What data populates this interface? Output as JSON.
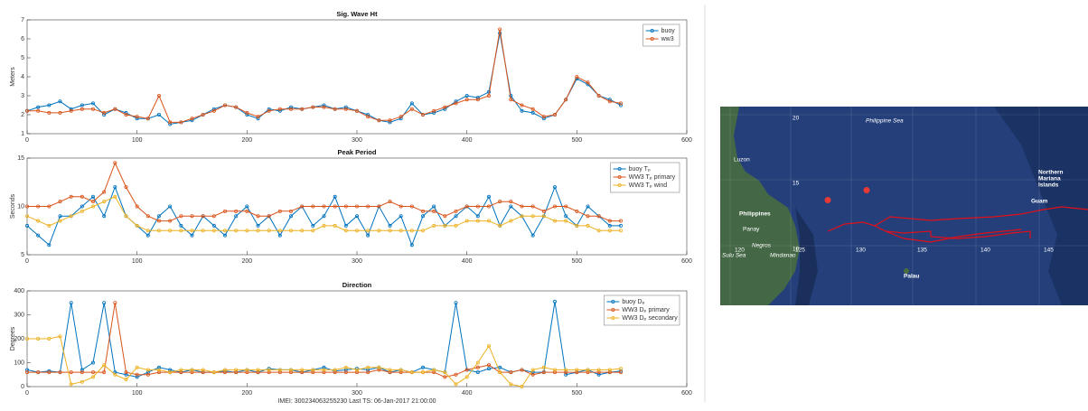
{
  "chart_data": [
    {
      "type": "line",
      "title": "Sig. Wave Ht",
      "y_label": "Meters",
      "x": [
        0,
        10,
        20,
        30,
        40,
        50,
        60,
        70,
        80,
        90,
        100,
        110,
        120,
        130,
        140,
        150,
        160,
        170,
        180,
        190,
        200,
        210,
        220,
        230,
        240,
        250,
        260,
        270,
        280,
        290,
        300,
        310,
        320,
        330,
        340,
        350,
        360,
        370,
        380,
        390,
        400,
        410,
        420,
        430,
        440,
        450,
        460,
        470,
        480,
        490,
        500,
        510,
        520,
        530,
        540
      ],
      "series": [
        {
          "name": "buoy",
          "color": "#0072bd",
          "values": [
            2.2,
            2.4,
            2.5,
            2.7,
            2.3,
            2.5,
            2.6,
            2.0,
            2.3,
            2.1,
            1.8,
            1.8,
            2.0,
            1.5,
            1.6,
            1.7,
            2.0,
            2.3,
            2.5,
            2.4,
            2.0,
            1.8,
            2.3,
            2.2,
            2.4,
            2.3,
            2.4,
            2.5,
            2.3,
            2.4,
            2.2,
            2.0,
            1.7,
            1.6,
            1.8,
            2.6,
            2.0,
            2.1,
            2.3,
            2.7,
            3.0,
            2.9,
            3.2,
            6.3,
            3.0,
            2.2,
            2.1,
            1.8,
            2.0,
            2.8,
            3.9,
            3.6,
            3.0,
            2.8,
            2.5
          ]
        },
        {
          "name": "ww3",
          "color": "#d95319",
          "values": [
            2.2,
            2.2,
            2.1,
            2.1,
            2.2,
            2.3,
            2.3,
            2.1,
            2.3,
            2.0,
            1.9,
            1.8,
            3.0,
            1.6,
            1.6,
            1.8,
            2.0,
            2.2,
            2.5,
            2.4,
            2.1,
            1.9,
            2.2,
            2.3,
            2.3,
            2.3,
            2.4,
            2.4,
            2.3,
            2.3,
            2.2,
            1.9,
            1.7,
            1.7,
            1.9,
            2.3,
            2.0,
            2.2,
            2.4,
            2.6,
            2.8,
            2.8,
            3.0,
            6.5,
            2.8,
            2.5,
            2.3,
            1.9,
            2.0,
            2.8,
            4.0,
            3.7,
            3.0,
            2.7,
            2.6
          ]
        }
      ],
      "xlim": [
        0,
        600
      ],
      "xticks": [
        0,
        100,
        200,
        300,
        400,
        500,
        600
      ],
      "ylim": [
        1,
        7
      ],
      "yticks": [
        1,
        2,
        3,
        4,
        5,
        6,
        7
      ],
      "grid": false,
      "legend": "upper right"
    },
    {
      "type": "line",
      "title": "Peak Period",
      "y_label": "Seconds",
      "x": [
        0,
        10,
        20,
        30,
        40,
        50,
        60,
        70,
        80,
        90,
        100,
        110,
        120,
        130,
        140,
        150,
        160,
        170,
        180,
        190,
        200,
        210,
        220,
        230,
        240,
        250,
        260,
        270,
        280,
        290,
        300,
        310,
        320,
        330,
        340,
        350,
        360,
        370,
        380,
        390,
        400,
        410,
        420,
        430,
        440,
        450,
        460,
        470,
        480,
        490,
        500,
        510,
        520,
        530,
        540
      ],
      "series": [
        {
          "name": "buoy Tₚ",
          "color": "#0072bd",
          "values": [
            8,
            7,
            6,
            9,
            9,
            10,
            11,
            9,
            12,
            9,
            8,
            7,
            9,
            10,
            8,
            7,
            9,
            8,
            7,
            9,
            10,
            8,
            9,
            7,
            9,
            10,
            8,
            9,
            11,
            8,
            9,
            7,
            10,
            8,
            9,
            6,
            9,
            10,
            8,
            9,
            10,
            9,
            11,
            8,
            10,
            9,
            7,
            9,
            12,
            9,
            8,
            10,
            9,
            8,
            8
          ]
        },
        {
          "name": "WW3 Tₚ primary",
          "color": "#d95319",
          "values": [
            10,
            10,
            10,
            10.5,
            11,
            11,
            10.5,
            11.5,
            14.5,
            12,
            10,
            9,
            8.5,
            8.5,
            9,
            9,
            9,
            9,
            9.5,
            9.5,
            9.5,
            9,
            9,
            9.5,
            9.5,
            10,
            10,
            10,
            10,
            10,
            10,
            10,
            10,
            10.5,
            10,
            10,
            9.5,
            9.5,
            9,
            9.5,
            10,
            10,
            10,
            10.5,
            10.5,
            10,
            10,
            9.5,
            10,
            10,
            9.5,
            9,
            9,
            8.5,
            8.5
          ]
        },
        {
          "name": "WW3 Tₚ wind",
          "color": "#edb120",
          "values": [
            9,
            8.5,
            8,
            8.5,
            9,
            9.5,
            10,
            10.5,
            11,
            9,
            8,
            7.5,
            7.5,
            7.5,
            7.5,
            7.5,
            7.5,
            7.5,
            7.5,
            7.5,
            7.5,
            7.5,
            7.5,
            7.5,
            7.5,
            7.5,
            7.5,
            8,
            8,
            7.5,
            7.5,
            7.5,
            7.5,
            7.5,
            7.5,
            7.5,
            7.5,
            8,
            8,
            8,
            8.5,
            8.5,
            8.5,
            8,
            8.5,
            9,
            9,
            9,
            8.5,
            8.5,
            8,
            8,
            7.5,
            7.5,
            7.5
          ]
        }
      ],
      "xlim": [
        0,
        600
      ],
      "xticks": [
        0,
        100,
        200,
        300,
        400,
        500,
        600
      ],
      "ylim": [
        5,
        15
      ],
      "yticks": [
        5,
        10,
        15
      ],
      "grid": false,
      "legend": "upper right"
    },
    {
      "type": "line",
      "title": "Direction",
      "y_label": "Degrees",
      "x": [
        0,
        10,
        20,
        30,
        40,
        50,
        60,
        70,
        80,
        90,
        100,
        110,
        120,
        130,
        140,
        150,
        160,
        170,
        180,
        190,
        200,
        210,
        220,
        230,
        240,
        250,
        260,
        270,
        280,
        290,
        300,
        310,
        320,
        330,
        340,
        350,
        360,
        370,
        380,
        390,
        400,
        410,
        420,
        430,
        440,
        450,
        460,
        470,
        480,
        490,
        500,
        510,
        520,
        530,
        540
      ],
      "series": [
        {
          "name": "buoy Dₚ",
          "color": "#0072bd",
          "values": [
            70,
            60,
            65,
            60,
            350,
            70,
            100,
            350,
            60,
            50,
            40,
            60,
            80,
            70,
            60,
            70,
            60,
            60,
            65,
            60,
            70,
            60,
            75,
            70,
            70,
            60,
            70,
            80,
            65,
            70,
            75,
            70,
            80,
            60,
            70,
            60,
            80,
            70,
            60,
            350,
            70,
            60,
            75,
            80,
            60,
            70,
            60,
            60,
            355,
            50,
            60,
            70,
            50,
            60,
            65
          ]
        },
        {
          "name": "WW3 Dₚ primary",
          "color": "#d95319",
          "values": [
            60,
            60,
            60,
            60,
            60,
            60,
            60,
            60,
            350,
            60,
            50,
            50,
            60,
            60,
            60,
            60,
            60,
            60,
            60,
            60,
            60,
            60,
            60,
            60,
            60,
            60,
            60,
            60,
            60,
            60,
            60,
            60,
            70,
            60,
            60,
            60,
            60,
            60,
            40,
            50,
            70,
            80,
            90,
            60,
            60,
            70,
            50,
            60,
            60,
            60,
            60,
            60,
            60,
            60,
            60
          ]
        },
        {
          "name": "WW3 Dₚ secondary",
          "color": "#edb120",
          "values": [
            200,
            200,
            200,
            210,
            10,
            20,
            40,
            90,
            50,
            30,
            80,
            70,
            70,
            60,
            70,
            70,
            70,
            60,
            70,
            70,
            70,
            70,
            70,
            70,
            70,
            70,
            70,
            70,
            70,
            80,
            70,
            80,
            80,
            70,
            70,
            60,
            60,
            70,
            60,
            10,
            40,
            100,
            170,
            60,
            10,
            0,
            70,
            80,
            70,
            70,
            70,
            70,
            70,
            70,
            75
          ]
        }
      ],
      "xlim": [
        0,
        600
      ],
      "xticks": [
        0,
        100,
        200,
        300,
        400,
        500,
        600
      ],
      "ylim": [
        0,
        400
      ],
      "yticks": [
        0,
        100,
        200,
        300,
        400
      ],
      "grid": false,
      "legend": "upper right"
    }
  ],
  "footer": "IMEI: 300234063255230 Last TS: 06-Jan-2017 21:00:00",
  "map": {
    "latitudes": [
      20,
      15,
      10
    ],
    "longitudes": [
      120,
      125,
      130,
      135,
      140,
      145
    ],
    "labels": [
      "Philippine Sea",
      "Luzon",
      "Philippines",
      "Panay",
      "Negros",
      "Sulu Sea",
      "Mindanao",
      "Palau",
      "Northern",
      "Mariana",
      "Islands",
      "Guam"
    ]
  }
}
